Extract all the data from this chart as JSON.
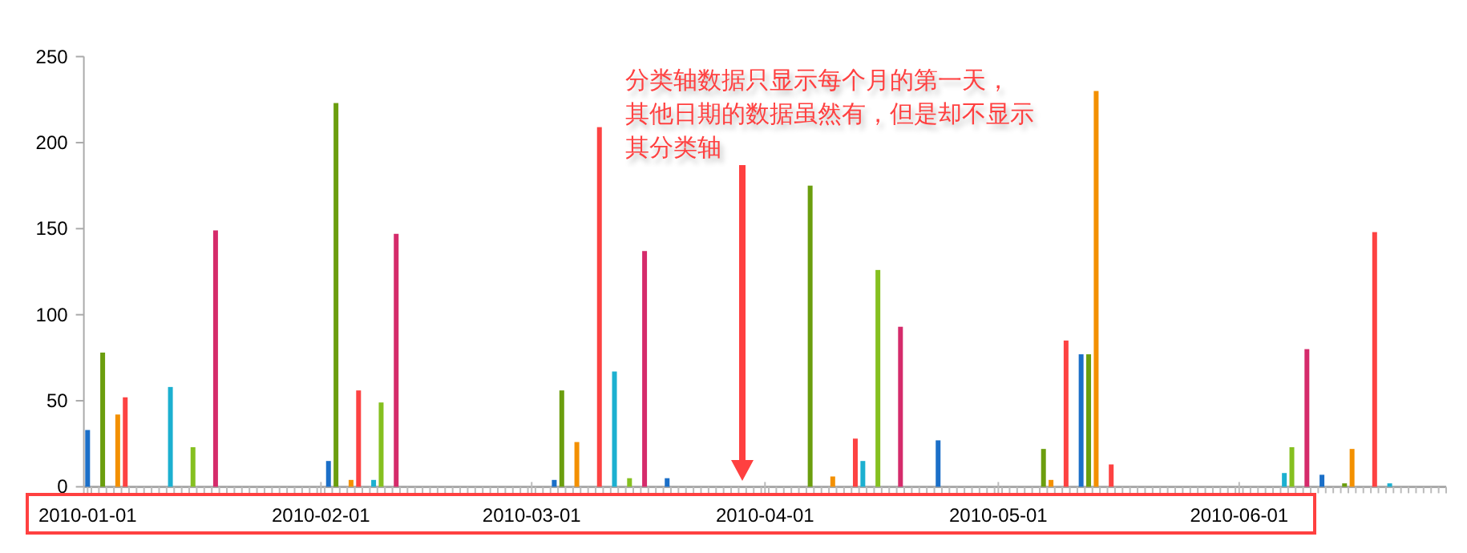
{
  "chart_data": {
    "type": "bar",
    "categories": [
      "2010-01-01",
      null,
      null,
      null,
      null,
      null,
      null,
      null,
      null,
      null,
      null,
      null,
      null,
      null,
      null,
      null,
      null,
      null,
      null,
      null,
      null,
      null,
      null,
      null,
      null,
      null,
      null,
      null,
      null,
      null,
      null,
      "2010-02-01",
      null,
      null,
      null,
      null,
      null,
      null,
      null,
      null,
      null,
      null,
      null,
      null,
      null,
      null,
      null,
      null,
      null,
      null,
      null,
      null,
      null,
      null,
      null,
      null,
      null,
      null,
      null,
      "2010-03-01",
      null,
      null,
      null,
      null,
      null,
      null,
      null,
      null,
      null,
      null,
      null,
      null,
      null,
      null,
      null,
      null,
      null,
      null,
      null,
      null,
      null,
      null,
      null,
      null,
      null,
      null,
      null,
      null,
      null,
      null,
      "2010-04-01",
      null,
      null,
      null,
      null,
      null,
      null,
      null,
      null,
      null,
      null,
      null,
      null,
      null,
      null,
      null,
      null,
      null,
      null,
      null,
      null,
      null,
      null,
      null,
      null,
      null,
      null,
      null,
      null,
      null,
      null,
      "2010-05-01",
      null,
      null,
      null,
      null,
      null,
      null,
      null,
      null,
      null,
      null,
      null,
      null,
      null,
      null,
      null,
      null,
      null,
      null,
      null,
      null,
      null,
      null,
      null,
      null,
      null,
      null,
      null,
      null,
      null,
      null,
      null,
      "2010-06-01",
      null,
      null,
      null,
      null,
      null,
      null,
      null,
      null,
      null,
      null,
      null,
      null,
      null,
      null,
      null,
      null,
      null,
      null,
      null,
      null,
      null,
      null,
      null,
      null,
      null,
      null,
      null
    ],
    "values": [
      33,
      null,
      78,
      null,
      42,
      52,
      null,
      null,
      null,
      null,
      null,
      58,
      null,
      null,
      23,
      null,
      null,
      149,
      null,
      null,
      null,
      null,
      null,
      null,
      null,
      null,
      null,
      null,
      null,
      null,
      null,
      null,
      15,
      223,
      null,
      4,
      56,
      null,
      4,
      49,
      null,
      147,
      null,
      null,
      null,
      null,
      null,
      null,
      null,
      null,
      null,
      null,
      null,
      null,
      null,
      null,
      null,
      null,
      null,
      null,
      null,
      null,
      4,
      56,
      null,
      26,
      null,
      null,
      209,
      null,
      67,
      null,
      5,
      null,
      137,
      null,
      null,
      5,
      null,
      null,
      null,
      null,
      null,
      null,
      null,
      null,
      null,
      null,
      null,
      null,
      null,
      null,
      null,
      null,
      null,
      null,
      175,
      null,
      null,
      6,
      null,
      null,
      28,
      15,
      null,
      126,
      null,
      null,
      93,
      null,
      null,
      null,
      null,
      27,
      null,
      null,
      null,
      null,
      null,
      null,
      null,
      null,
      null,
      null,
      null,
      null,
      null,
      22,
      4,
      null,
      85,
      null,
      77,
      77,
      230,
      null,
      13,
      null,
      null,
      null,
      null,
      null,
      null,
      null,
      null,
      null,
      null,
      null,
      null,
      null,
      null,
      null,
      null,
      null,
      null,
      null,
      null,
      null,
      null,
      8,
      23,
      null,
      80,
      null,
      7,
      null,
      null,
      2,
      22,
      null,
      null,
      148,
      null,
      2,
      null,
      null,
      null,
      null,
      null,
      null,
      null
    ],
    "colors": [
      "#1b6fc8",
      null,
      "#6b9e0e",
      null,
      "#f39000",
      "#fd4242",
      null,
      null,
      null,
      null,
      null,
      "#1cb0d0",
      null,
      null,
      "#85c020",
      null,
      null,
      "#d52b6b",
      null,
      null,
      null,
      null,
      null,
      null,
      null,
      null,
      null,
      null,
      null,
      null,
      null,
      null,
      "#1b6fc8",
      "#6b9e0e",
      null,
      "#f39000",
      "#fd4242",
      null,
      "#1cb0d0",
      "#85c020",
      null,
      "#d52b6b",
      null,
      null,
      null,
      null,
      null,
      null,
      null,
      null,
      null,
      null,
      null,
      null,
      null,
      null,
      null,
      null,
      null,
      null,
      null,
      null,
      "#1b6fc8",
      "#6b9e0e",
      null,
      "#f39000",
      null,
      null,
      "#fd4242",
      null,
      "#1cb0d0",
      null,
      "#85c020",
      null,
      "#d52b6b",
      null,
      null,
      "#1b6fc8",
      null,
      null,
      null,
      null,
      null,
      null,
      null,
      null,
      null,
      null,
      null,
      null,
      null,
      null,
      null,
      null,
      null,
      null,
      "#6b9e0e",
      null,
      null,
      "#f39000",
      null,
      null,
      "#fd4242",
      "#1cb0d0",
      null,
      "#85c020",
      null,
      null,
      "#d52b6b",
      null,
      null,
      null,
      null,
      "#1b6fc8",
      null,
      null,
      null,
      null,
      null,
      null,
      null,
      null,
      null,
      null,
      null,
      null,
      null,
      "#6b9e0e",
      "#f39000",
      null,
      "#fd4242",
      null,
      "#1b6fc8",
      "#6b9e0e",
      "#f39000",
      null,
      "#fd4242",
      null,
      null,
      null,
      null,
      null,
      null,
      null,
      null,
      null,
      null,
      null,
      null,
      null,
      null,
      null,
      null,
      null,
      null,
      null,
      null,
      null,
      null,
      "#1cb0d0",
      "#85c020",
      null,
      "#d52b6b",
      null,
      "#1b6fc8",
      null,
      null,
      "#6b9e0e",
      "#f39000",
      null,
      null,
      "#fd4242",
      null,
      "#1cb0d0",
      null,
      null,
      null,
      null,
      null,
      null,
      null
    ],
    "ylim": [
      0,
      250
    ],
    "yticks": [
      0,
      50,
      100,
      150,
      200,
      250
    ],
    "annotations": [
      "分类轴数据只显示每个月的第一天，其他日期的数据虽然有，但是却不显示其分类轴"
    ]
  }
}
